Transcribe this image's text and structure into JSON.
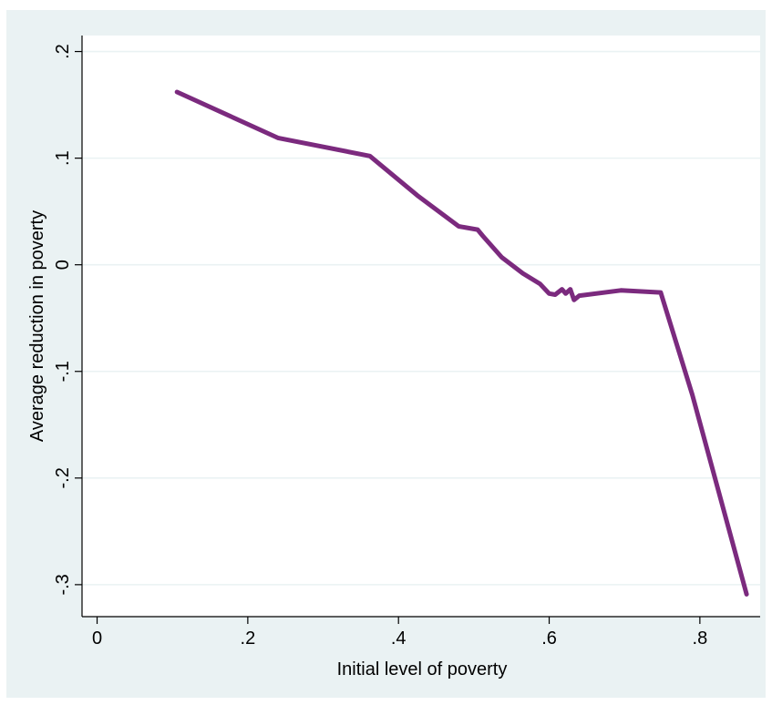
{
  "chart_data": {
    "type": "line",
    "title": "",
    "xlabel": "Initial level of poverty",
    "ylabel": "Average reduction in poverty",
    "xlim": [
      -0.02,
      0.88
    ],
    "ylim": [
      -0.33,
      0.215
    ],
    "xticks": [
      0,
      0.2,
      0.4,
      0.6,
      0.8
    ],
    "xtick_labels": [
      "0",
      ".2",
      ".4",
      ".6",
      ".8"
    ],
    "yticks": [
      0.2,
      0.1,
      0,
      -0.1,
      -0.2,
      -0.3
    ],
    "ytick_labels": [
      ".2",
      ".1",
      "0",
      "-.1",
      "-.2",
      "-.3"
    ],
    "grid": true,
    "legend": "none",
    "line_color": "#7b2a7e",
    "background_color": "#eaf2f3",
    "series": [
      {
        "x": [
          0.106,
          0.24,
          0.362,
          0.425,
          0.48,
          0.505,
          0.512,
          0.537,
          0.565,
          0.588,
          0.6,
          0.608,
          0.617,
          0.622,
          0.628,
          0.633,
          0.64,
          0.695,
          0.748,
          0.79,
          0.862
        ],
        "y": [
          0.162,
          0.119,
          0.102,
          0.065,
          0.036,
          0.033,
          0.027,
          0.007,
          -0.008,
          -0.018,
          -0.027,
          -0.028,
          -0.023,
          -0.027,
          -0.023,
          -0.033,
          -0.029,
          -0.024,
          -0.026,
          -0.122,
          -0.309
        ]
      }
    ]
  }
}
